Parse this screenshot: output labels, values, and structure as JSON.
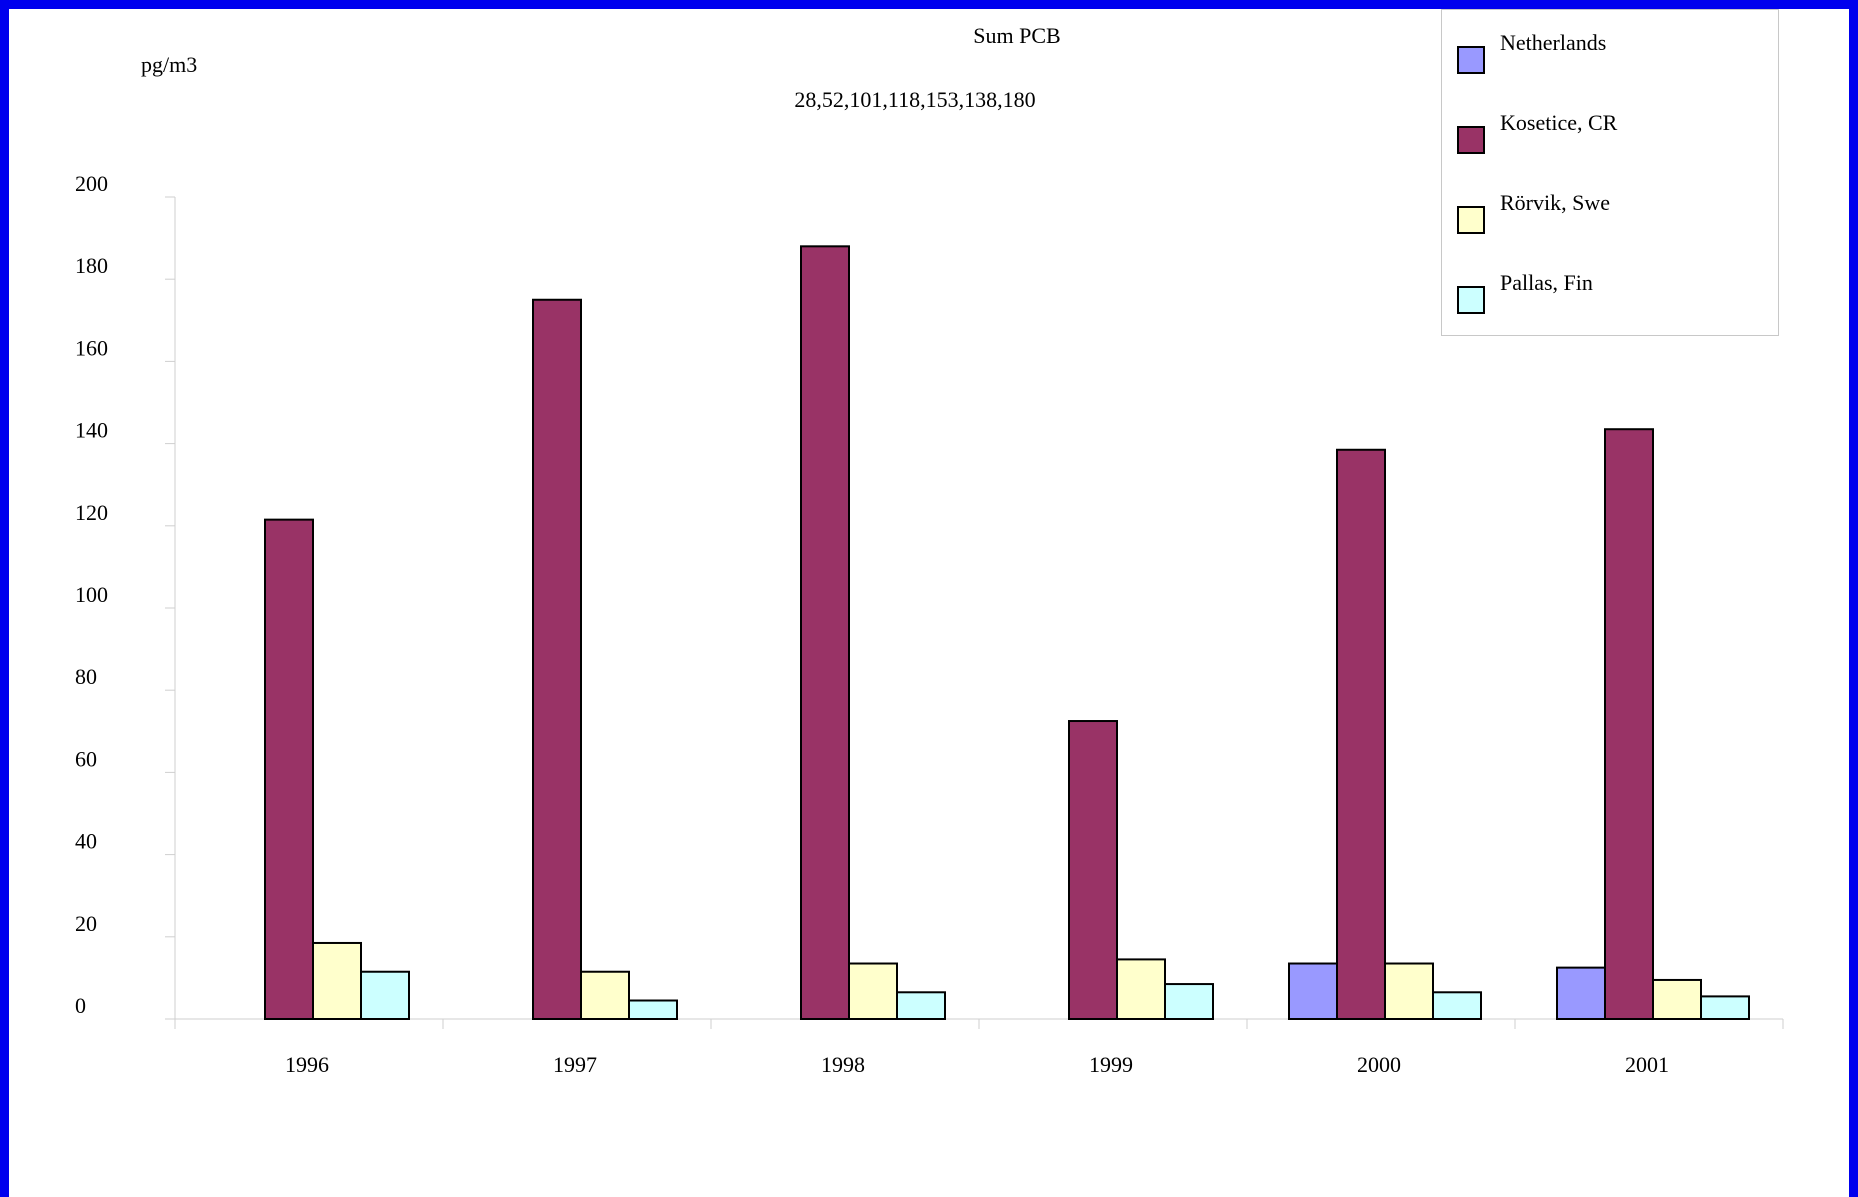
{
  "chart_data": {
    "type": "bar",
    "title": "Sum PCB",
    "subtitle": "28,52,101,118,153,138,180",
    "ylabel": "pg/m3",
    "xlabel": "",
    "ylim": [
      0,
      200
    ],
    "yticks": [
      0,
      20,
      40,
      60,
      80,
      100,
      120,
      140,
      160,
      180,
      200
    ],
    "categories": [
      "1996",
      "1997",
      "1998",
      "1999",
      "2000",
      "2001"
    ],
    "series": [
      {
        "name": "Netherlands",
        "color": "#9999ff",
        "values": [
          null,
          null,
          null,
          null,
          13.5,
          12.5
        ]
      },
      {
        "name": "Kosetice, CR",
        "color": "#993366",
        "values": [
          121.5,
          175,
          188,
          72.5,
          138.5,
          143.5
        ]
      },
      {
        "name": "Rörvik, Swe",
        "color": "#ffffcc",
        "values": [
          18.5,
          11.5,
          13.5,
          14.5,
          13.5,
          9.5
        ]
      },
      {
        "name": "Pallas, Fin",
        "color": "#ccffff",
        "values": [
          11.5,
          4.5,
          6.5,
          8.5,
          6.5,
          5.5
        ]
      }
    ],
    "grid": false,
    "legend_position": "top-right"
  }
}
